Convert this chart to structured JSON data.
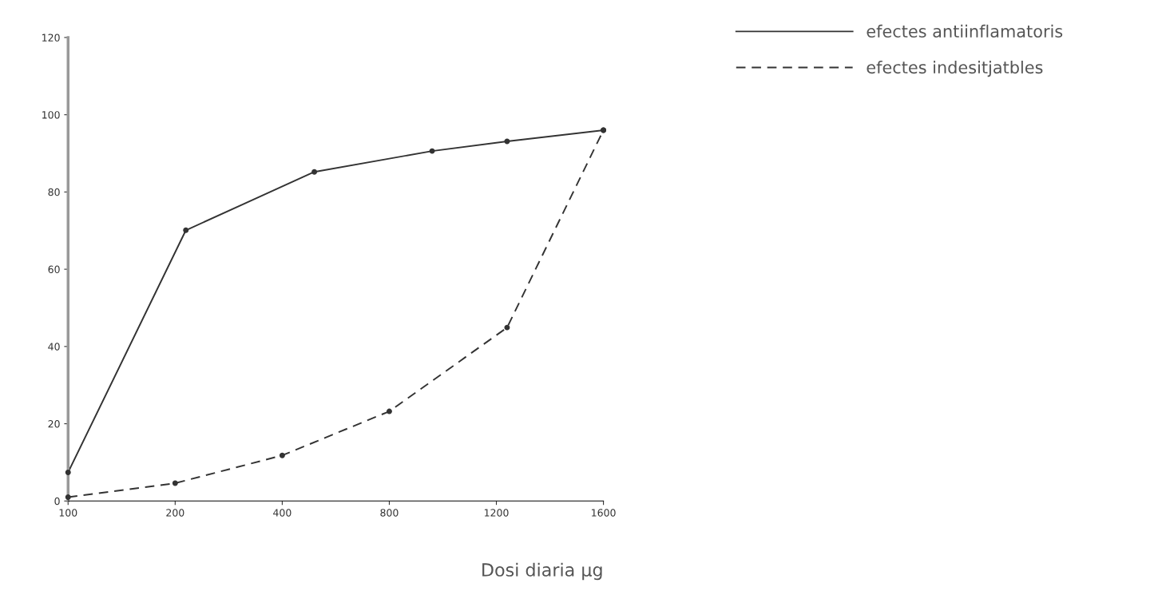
{
  "chart_data": {
    "type": "line",
    "xlabel": "Dosi diaria µg",
    "categories": [
      "100",
      null,
      null,
      null,
      null,
      null,
      null,
      null,
      null,
      null,
      "200",
      null,
      null,
      null,
      null,
      null,
      null,
      null,
      null,
      null,
      "400",
      null,
      null,
      null,
      null,
      null,
      null,
      null,
      null,
      null,
      "800",
      null,
      null,
      null,
      null,
      null,
      null,
      null,
      null,
      null,
      "1200",
      null,
      null,
      null,
      null,
      null,
      null,
      null,
      null,
      null,
      "1600"
    ],
    "ylim": [
      0,
      120
    ],
    "yticks": [
      0,
      20,
      40,
      60,
      80,
      100,
      120
    ],
    "series": [
      {
        "name": "efectes antiinflamatoris",
        "color": "#333333",
        "line_style": "solid",
        "values": [
          7.4,
          null,
          null,
          null,
          null,
          null,
          null,
          null,
          null,
          null,
          null,
          70.1,
          null,
          null,
          null,
          null,
          null,
          null,
          null,
          null,
          null,
          null,
          null,
          85.2,
          null,
          null,
          null,
          null,
          null,
          null,
          null,
          null,
          null,
          null,
          90.6,
          null,
          null,
          null,
          null,
          null,
          null,
          93.1,
          null,
          null,
          null,
          null,
          null,
          null,
          null,
          null,
          96.0
        ]
      },
      {
        "name": "efectes indesitjatbles",
        "color": "#333333",
        "line_style": "dashed",
        "values": [
          1.0,
          null,
          null,
          null,
          null,
          null,
          null,
          null,
          null,
          null,
          4.6,
          null,
          null,
          null,
          null,
          null,
          null,
          null,
          null,
          null,
          11.8,
          null,
          null,
          null,
          null,
          null,
          null,
          null,
          null,
          null,
          23.2,
          null,
          null,
          null,
          null,
          null,
          null,
          null,
          null,
          null,
          null,
          44.9,
          null,
          null,
          null,
          null,
          null,
          null,
          null,
          null,
          96.0
        ]
      }
    ],
    "marker": "circle",
    "grid": false,
    "legend": "top right"
  }
}
